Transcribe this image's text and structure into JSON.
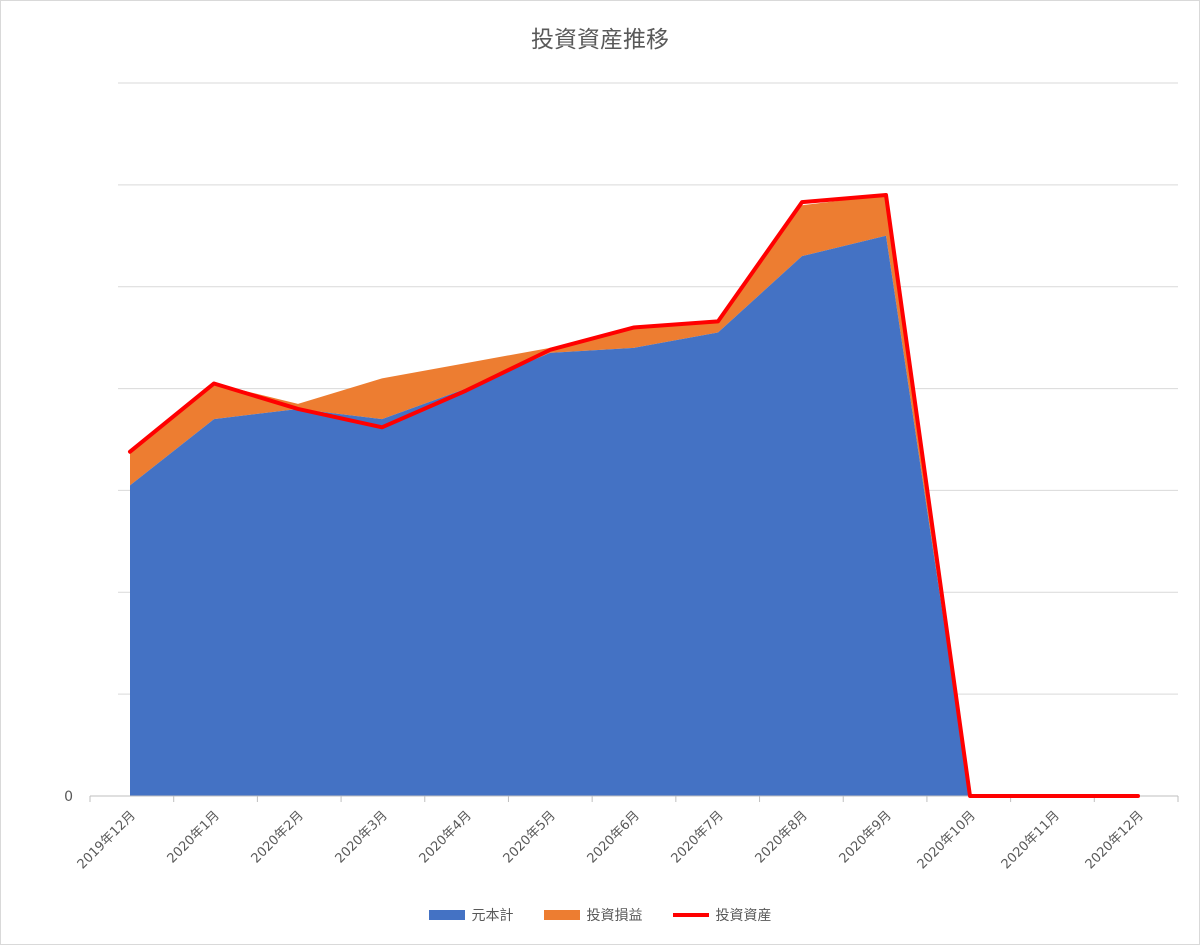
{
  "chart_data": {
    "type": "area",
    "title": "投資資産推移",
    "categories": [
      "2019年12月",
      "2020年1月",
      "2020年2月",
      "2020年3月",
      "2020年4月",
      "2020年5月",
      "2020年6月",
      "2020年7月",
      "2020年8月",
      "2020年9月",
      "2020年10月",
      "2020年11月",
      "2020年12月"
    ],
    "ytick_labels": [
      "0"
    ],
    "gridline_count": 7,
    "series": [
      {
        "name": "元本計",
        "kind": "stacked-area",
        "color": "#4472C4",
        "values": [
          3.05,
          3.7,
          3.8,
          3.7,
          4.0,
          4.35,
          4.4,
          4.55,
          5.3,
          5.5,
          0,
          0,
          0
        ]
      },
      {
        "name": "投資損益",
        "kind": "stacked-area",
        "color": "#ED7D31",
        "values": [
          0.35,
          0.35,
          0.05,
          0.4,
          0.25,
          0.05,
          0.2,
          0.1,
          0.5,
          0.4,
          0,
          0,
          0
        ]
      },
      {
        "name": "投資資産",
        "kind": "line",
        "color": "#FF0000",
        "values": [
          3.38,
          4.05,
          3.8,
          3.62,
          3.98,
          4.38,
          4.6,
          4.66,
          5.83,
          5.9,
          0,
          0,
          0
        ]
      }
    ],
    "ylim": [
      0,
      7
    ],
    "grid": true,
    "legend_position": "bottom"
  }
}
